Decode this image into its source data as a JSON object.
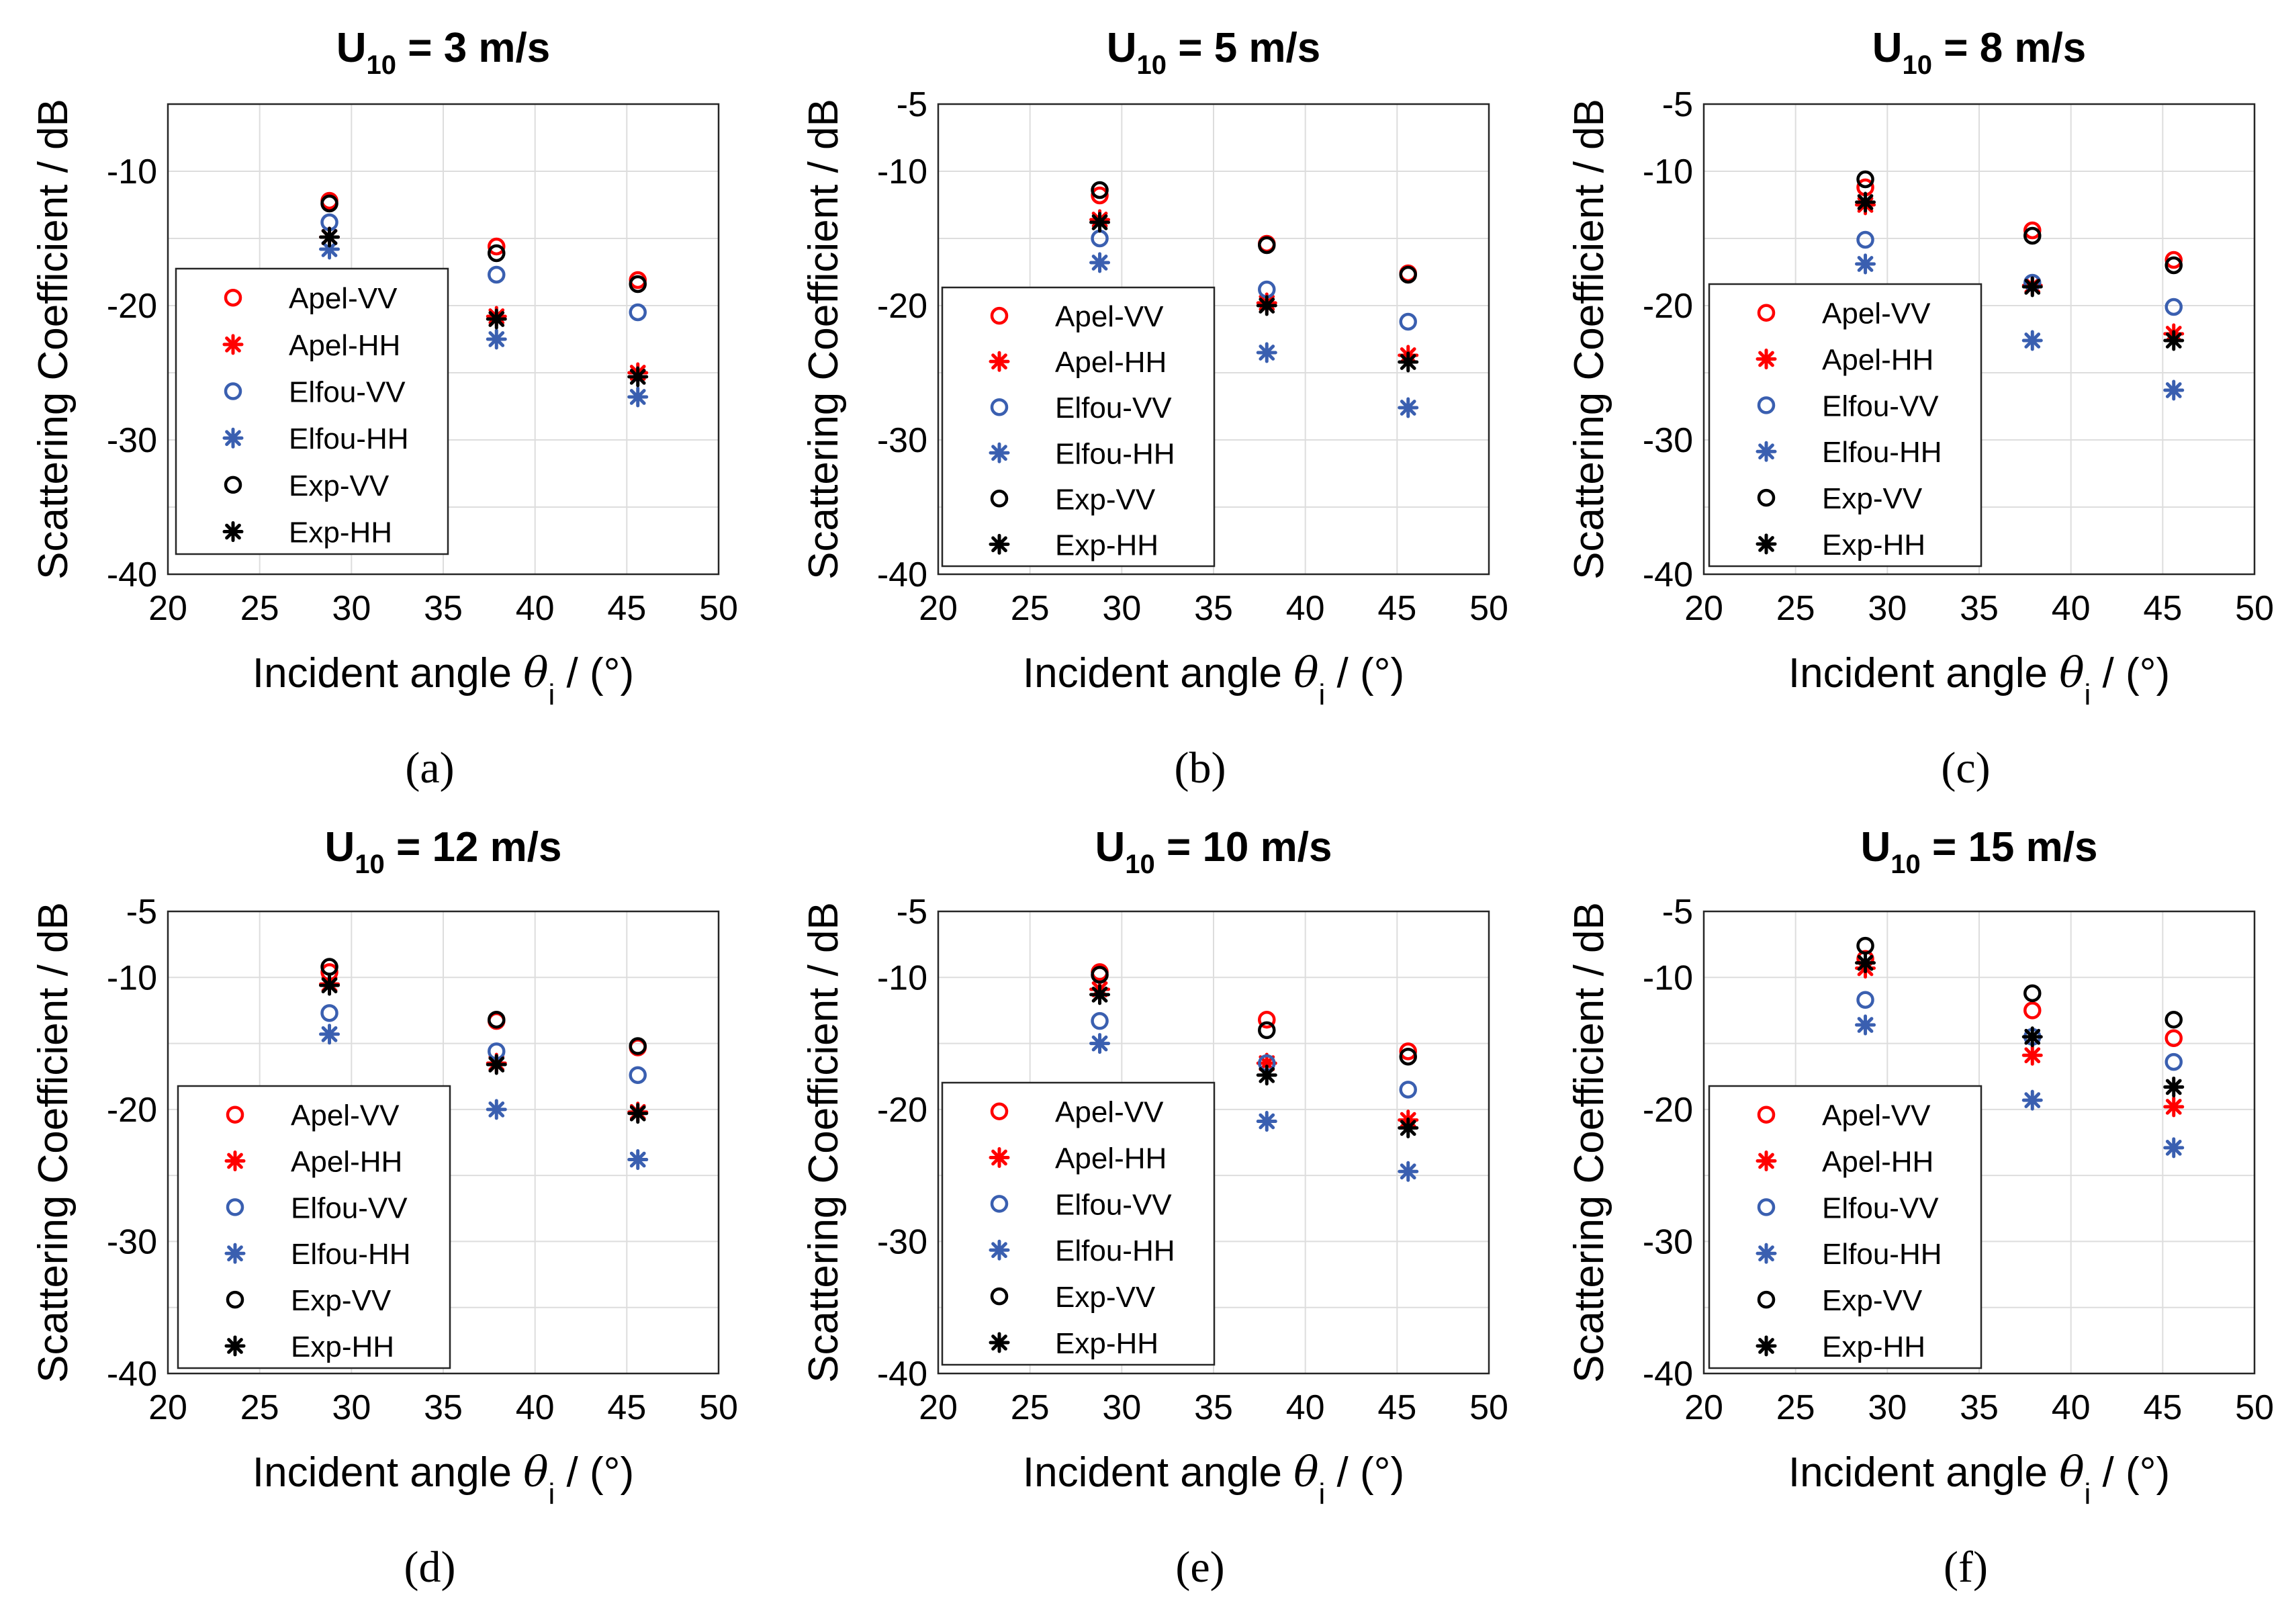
{
  "figure": {
    "y_axis_label": "Scattering Coefficient / dB",
    "x_axis_label_prefix": "Incident angle ",
    "x_axis_label_symbol": "θ",
    "x_axis_label_subscript": "i",
    "x_axis_label_suffix": " / (°)"
  },
  "series_styles": [
    {
      "name": "Apel-VV",
      "marker": "circle",
      "color": "#ff0000"
    },
    {
      "name": "Apel-HH",
      "marker": "asterisk",
      "color": "#ff0000"
    },
    {
      "name": "Elfou-VV",
      "marker": "circle",
      "color": "#3a5fb0"
    },
    {
      "name": "Elfou-HH",
      "marker": "asterisk",
      "color": "#3a5fb0"
    },
    {
      "name": "Exp-VV",
      "marker": "circle",
      "color": "#000000"
    },
    {
      "name": "Exp-HH",
      "marker": "asterisk",
      "color": "#000000"
    }
  ],
  "chart_data": [
    {
      "type": "scatter",
      "panel": "(a)",
      "title_main": "U",
      "title_sub": "10",
      "title_rest": " = 3 m/s",
      "xlim": [
        20,
        50
      ],
      "ylim": [
        -40,
        -5
      ],
      "xticks": [
        20,
        25,
        30,
        35,
        40,
        45,
        50
      ],
      "yticks": [
        -10,
        -20,
        -30,
        -40
      ],
      "grid": true,
      "legend_position": "lower-left",
      "x": [
        28.8,
        37.9,
        45.6
      ],
      "series": [
        {
          "name": "Apel-VV",
          "values": [
            -12.2,
            -15.6,
            -18.1
          ]
        },
        {
          "name": "Apel-HH",
          "values": [
            -14.9,
            -20.8,
            -25.0
          ]
        },
        {
          "name": "Elfou-VV",
          "values": [
            -13.8,
            -17.7,
            -20.5
          ]
        },
        {
          "name": "Elfou-HH",
          "values": [
            -15.8,
            -22.5,
            -26.8
          ]
        },
        {
          "name": "Exp-VV",
          "values": [
            -12.4,
            -16.1,
            -18.4
          ]
        },
        {
          "name": "Exp-HH",
          "values": [
            -14.9,
            -21.0,
            -25.3
          ]
        }
      ]
    },
    {
      "type": "scatter",
      "panel": "(b)",
      "title_main": "U",
      "title_sub": "10",
      "title_rest": " = 5 m/s",
      "xlim": [
        20,
        50
      ],
      "ylim": [
        -40,
        -5
      ],
      "xticks": [
        20,
        25,
        30,
        35,
        40,
        45,
        50
      ],
      "yticks": [
        -5,
        -10,
        -20,
        -30,
        -40
      ],
      "grid": true,
      "legend_position": "lower-left",
      "x": [
        28.8,
        37.9,
        45.6
      ],
      "series": [
        {
          "name": "Apel-VV",
          "values": [
            -11.8,
            -15.4,
            -17.6
          ]
        },
        {
          "name": "Apel-HH",
          "values": [
            -13.6,
            -19.8,
            -23.7
          ]
        },
        {
          "name": "Elfou-VV",
          "values": [
            -15.0,
            -18.8,
            -21.2
          ]
        },
        {
          "name": "Elfou-HH",
          "values": [
            -16.8,
            -23.5,
            -27.6
          ]
        },
        {
          "name": "Exp-VV",
          "values": [
            -11.4,
            -15.5,
            -17.7
          ]
        },
        {
          "name": "Exp-HH",
          "values": [
            -13.8,
            -20.0,
            -24.2
          ]
        }
      ]
    },
    {
      "type": "scatter",
      "panel": "(c)",
      "title_main": "U",
      "title_sub": "10",
      "title_rest": " = 8 m/s",
      "xlim": [
        20,
        50
      ],
      "ylim": [
        -40,
        -5
      ],
      "xticks": [
        20,
        25,
        30,
        35,
        40,
        45,
        50
      ],
      "yticks": [
        -5,
        -10,
        -20,
        -30,
        -40
      ],
      "grid": true,
      "legend_position": "lower-left",
      "x": [
        28.8,
        37.9,
        45.6
      ],
      "series": [
        {
          "name": "Apel-VV",
          "values": [
            -11.2,
            -14.4,
            -16.6
          ]
        },
        {
          "name": "Apel-HH",
          "values": [
            -12.5,
            -18.5,
            -22.1
          ]
        },
        {
          "name": "Elfou-VV",
          "values": [
            -15.1,
            -18.3,
            -20.1
          ]
        },
        {
          "name": "Elfou-HH",
          "values": [
            -16.9,
            -22.6,
            -26.3
          ]
        },
        {
          "name": "Exp-VV",
          "values": [
            -10.6,
            -14.8,
            -17.0
          ]
        },
        {
          "name": "Exp-HH",
          "values": [
            -12.3,
            -18.6,
            -22.6
          ]
        }
      ]
    },
    {
      "type": "scatter",
      "panel": "(d)",
      "title_main": "U",
      "title_sub": "10",
      "title_rest": " = 12 m/s",
      "xlim": [
        20,
        50
      ],
      "ylim": [
        -40,
        -5
      ],
      "xticks": [
        20,
        25,
        30,
        35,
        40,
        45,
        50
      ],
      "yticks": [
        -5,
        -10,
        -20,
        -30,
        -40
      ],
      "grid": true,
      "legend_position": "lower-left",
      "x": [
        28.8,
        37.9,
        45.6
      ],
      "series": [
        {
          "name": "Apel-VV",
          "values": [
            -9.6,
            -13.3,
            -15.3
          ]
        },
        {
          "name": "Apel-HH",
          "values": [
            -10.5,
            -16.5,
            -20.2
          ]
        },
        {
          "name": "Elfou-VV",
          "values": [
            -12.7,
            -15.6,
            -17.4
          ]
        },
        {
          "name": "Elfou-HH",
          "values": [
            -14.3,
            -20.0,
            -23.8
          ]
        },
        {
          "name": "Exp-VV",
          "values": [
            -9.2,
            -13.2,
            -15.2
          ]
        },
        {
          "name": "Exp-HH",
          "values": [
            -10.6,
            -16.6,
            -20.3
          ]
        }
      ]
    },
    {
      "type": "scatter",
      "panel": "(e)",
      "title_main": "U",
      "title_sub": "10",
      "title_rest": " = 10 m/s",
      "xlim": [
        20,
        50
      ],
      "ylim": [
        -40,
        -5
      ],
      "xticks": [
        20,
        25,
        30,
        35,
        40,
        45,
        50
      ],
      "yticks": [
        -5,
        -10,
        -20,
        -30,
        -40
      ],
      "grid": true,
      "legend_position": "lower-left",
      "x": [
        28.8,
        37.9,
        45.6
      ],
      "series": [
        {
          "name": "Apel-VV",
          "values": [
            -9.6,
            -13.2,
            -15.6
          ]
        },
        {
          "name": "Apel-HH",
          "values": [
            -10.9,
            -16.5,
            -20.8
          ]
        },
        {
          "name": "Elfou-VV",
          "values": [
            -13.3,
            -16.5,
            -18.5
          ]
        },
        {
          "name": "Elfou-HH",
          "values": [
            -15.0,
            -20.9,
            -24.7
          ]
        },
        {
          "name": "Exp-VV",
          "values": [
            -9.8,
            -14.0,
            -16.0
          ]
        },
        {
          "name": "Exp-HH",
          "values": [
            -11.3,
            -17.4,
            -21.4
          ]
        }
      ]
    },
    {
      "type": "scatter",
      "panel": "(f)",
      "title_main": "U",
      "title_sub": "10",
      "title_rest": " = 15 m/s",
      "xlim": [
        20,
        50
      ],
      "ylim": [
        -40,
        -5
      ],
      "xticks": [
        20,
        25,
        30,
        35,
        40,
        45,
        50
      ],
      "yticks": [
        -5,
        -10,
        -20,
        -30,
        -40
      ],
      "grid": true,
      "legend_position": "lower-left",
      "x": [
        28.8,
        37.9,
        45.6
      ],
      "series": [
        {
          "name": "Apel-VV",
          "values": [
            -8.6,
            -12.5,
            -14.6
          ]
        },
        {
          "name": "Apel-HH",
          "values": [
            -9.3,
            -15.9,
            -19.8
          ]
        },
        {
          "name": "Elfou-VV",
          "values": [
            -11.7,
            -14.5,
            -16.4
          ]
        },
        {
          "name": "Elfou-HH",
          "values": [
            -13.6,
            -19.3,
            -22.9
          ]
        },
        {
          "name": "Exp-VV",
          "values": [
            -7.6,
            -11.2,
            -13.2
          ]
        },
        {
          "name": "Exp-HH",
          "values": [
            -8.9,
            -14.5,
            -18.3
          ]
        }
      ]
    }
  ]
}
